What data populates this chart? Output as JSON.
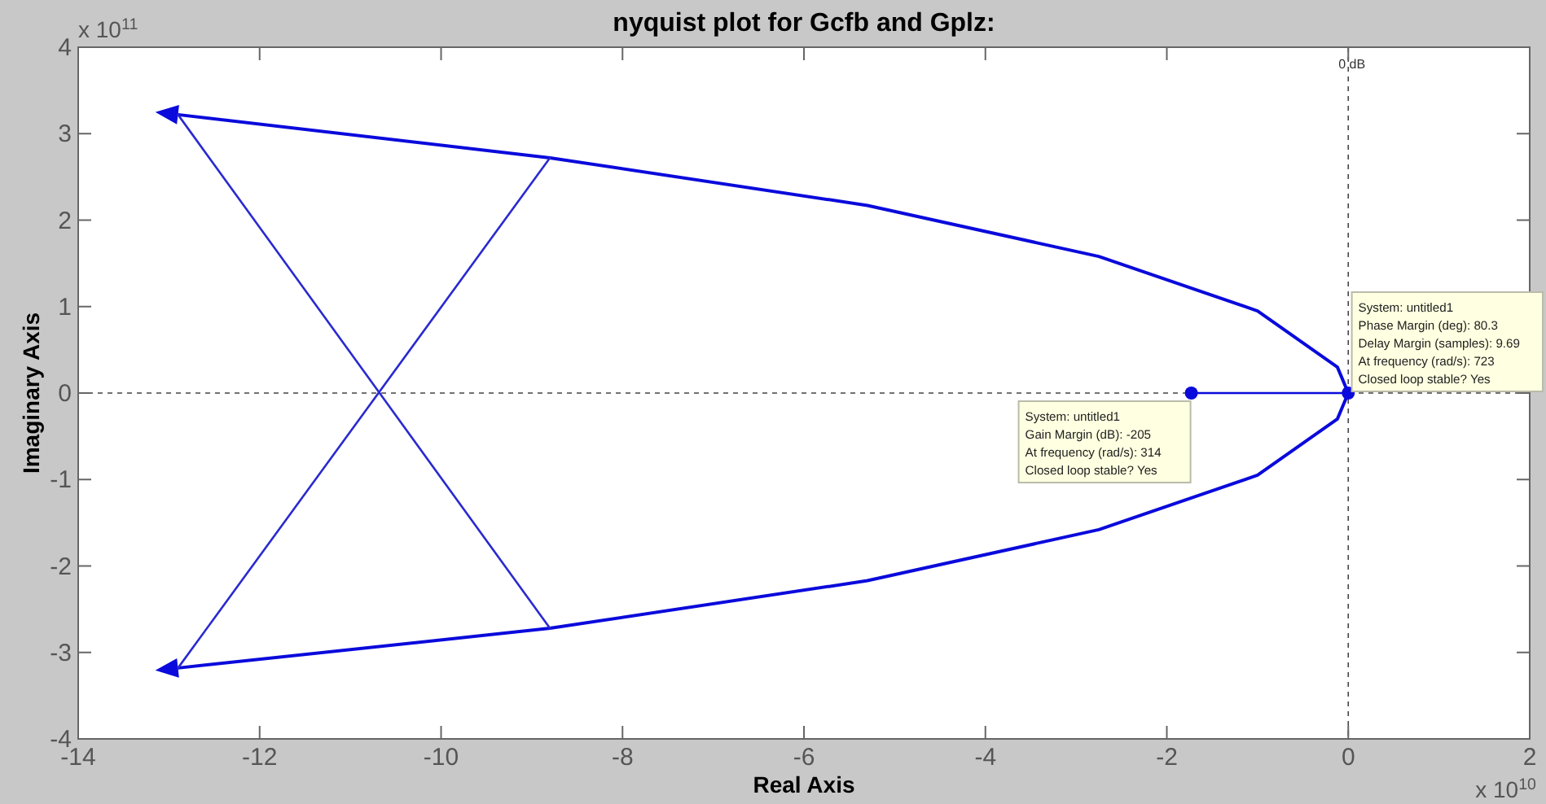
{
  "chart_data": {
    "type": "line",
    "title": "nyquist plot for Gcfb and Gplz:",
    "xlabel": "Real Axis",
    "ylabel": "Imaginary Axis",
    "xlim": [
      -14,
      2
    ],
    "ylim": [
      -4,
      4
    ],
    "xticks": [
      -14,
      -12,
      -10,
      -8,
      -6,
      -4,
      -2,
      0,
      2
    ],
    "yticks": [
      -4,
      -3,
      -2,
      -1,
      0,
      1,
      2,
      3,
      4
    ],
    "grid": false,
    "marker": "none",
    "series": [
      {
        "color": "#0a0adc",
        "x": [
          0,
          -0.12,
          -1,
          -2.75,
          -5.3,
          -8.8,
          -12.9
        ],
        "values": [
          0,
          0.3,
          0.95,
          1.58,
          2.17,
          2.72,
          3.22
        ]
      },
      {
        "color": "#0a0adc",
        "x": [
          0,
          -0.12,
          -1,
          -2.75,
          -5.3,
          -8.8,
          -12.9
        ],
        "values": [
          0,
          -0.3,
          -0.95,
          -1.58,
          -2.17,
          -2.72,
          -3.18
        ]
      },
      {
        "color": "#2a2ad0",
        "x": [
          -12.9,
          -8.8
        ],
        "values": [
          3.22,
          -2.72
        ]
      },
      {
        "color": "#2a2ad0",
        "x": [
          -8.8,
          -12.9
        ],
        "values": [
          2.72,
          -3.18
        ]
      },
      {
        "color": "#0a0adc",
        "x": [
          -1.73,
          0
        ],
        "values": [
          0,
          0
        ],
        "marker": "circle"
      }
    ],
    "ref_lines": [
      {
        "axis": "y",
        "value": 0,
        "line_style": "dashed",
        "color": "#444444"
      },
      {
        "axis": "x",
        "value": 0,
        "label": "0 dB",
        "line_style": "dashed",
        "color": "#444444"
      }
    ],
    "annotations": [
      "x 10$^{11}$",
      "x 10$^{10}$",
      {
        "text": "System: untitled1\nPhase Margin (deg): 80.3\nDelay Margin (samples): 9.69\nAt frequency (rad/s): 723\nClosed loop stable? Yes",
        "x": 0,
        "y": 0
      },
      {
        "text": "System: untitled1\nGain Margin (dB): -205\nAt frequency (rad/s): 314\nClosed loop stable? Yes",
        "x": -1.73,
        "y": 0
      }
    ]
  }
}
